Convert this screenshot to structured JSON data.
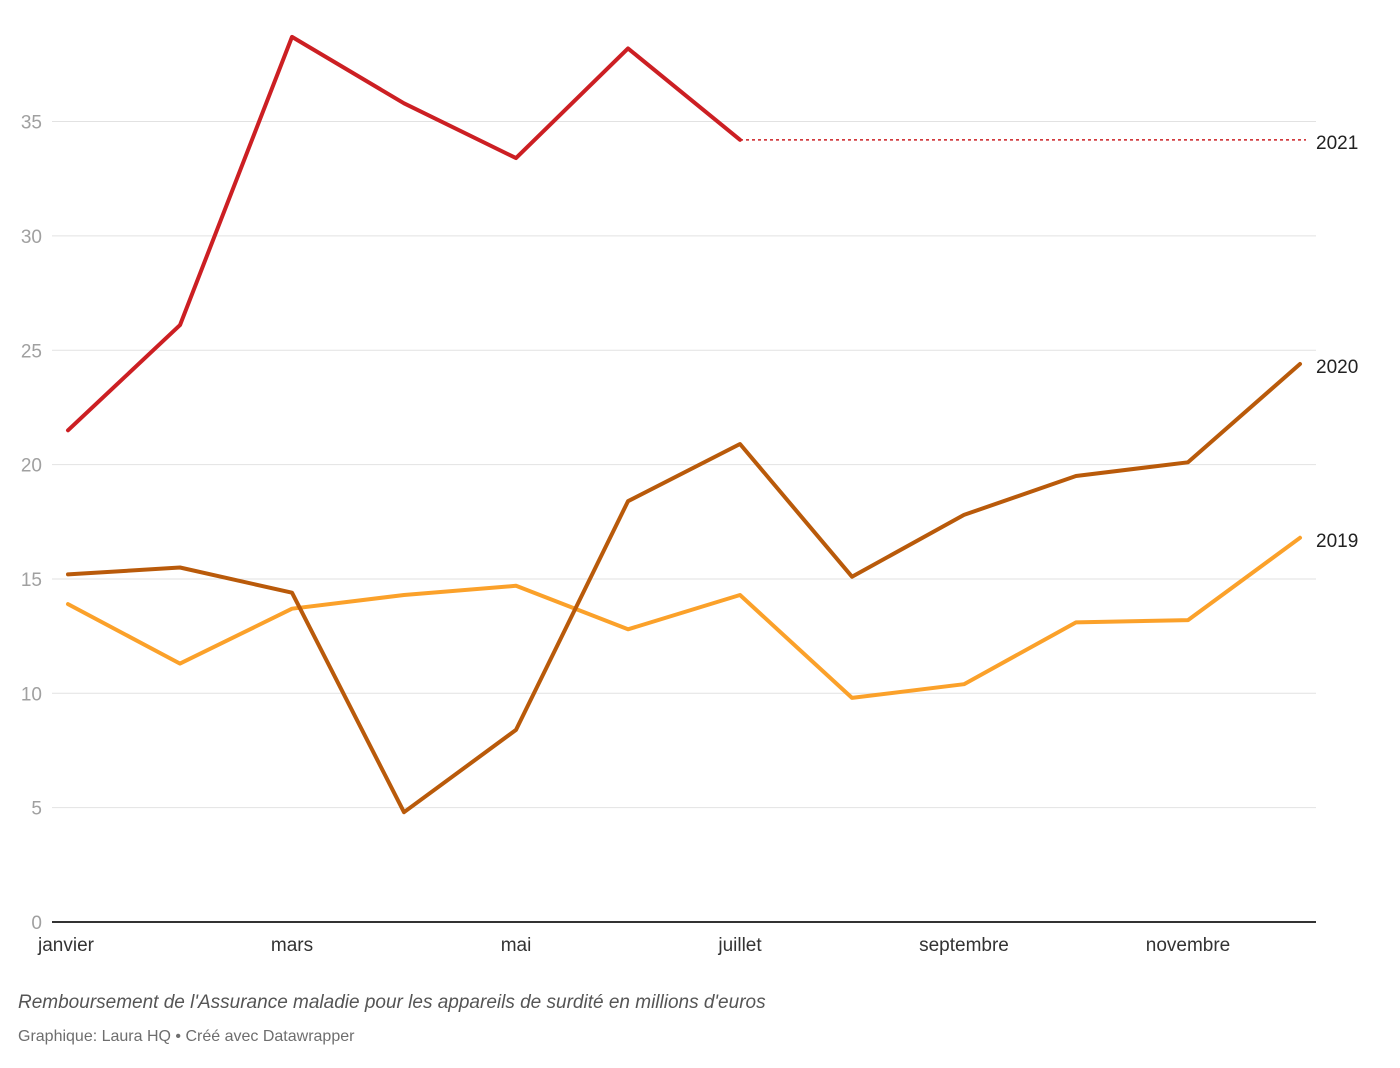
{
  "chart_data": {
    "type": "line",
    "caption": "Remboursement de l'Assurance maladie pour les appareils de surdité en millions d'euros",
    "credit": "Graphique: Laura HQ • Créé avec Datawrapper",
    "ylim": [
      0,
      38
    ],
    "yticks": [
      0,
      5,
      10,
      15,
      20,
      25,
      30,
      35
    ],
    "x_count": 12,
    "xtick_labels": [
      {
        "index": 0,
        "label": "janvier"
      },
      {
        "index": 2,
        "label": "mars"
      },
      {
        "index": 4,
        "label": "mai"
      },
      {
        "index": 6,
        "label": "juillet"
      },
      {
        "index": 8,
        "label": "septembre"
      },
      {
        "index": 10,
        "label": "novembre"
      }
    ],
    "series": [
      {
        "name": "2019",
        "color": "#fba12a",
        "values": [
          13.9,
          11.3,
          13.7,
          14.3,
          14.7,
          12.8,
          14.3,
          9.8,
          10.4,
          13.1,
          13.2,
          16.8
        ]
      },
      {
        "name": "2020",
        "color": "#b95a0a",
        "values": [
          15.2,
          15.5,
          14.4,
          4.8,
          8.4,
          18.4,
          20.9,
          15.1,
          17.8,
          19.5,
          20.1,
          24.4
        ]
      },
      {
        "name": "2021",
        "color": "#cc1f23",
        "values": [
          21.5,
          26.1,
          38.7,
          35.8,
          33.4,
          38.2,
          34.2
        ],
        "dotted_extension": true
      }
    ]
  }
}
